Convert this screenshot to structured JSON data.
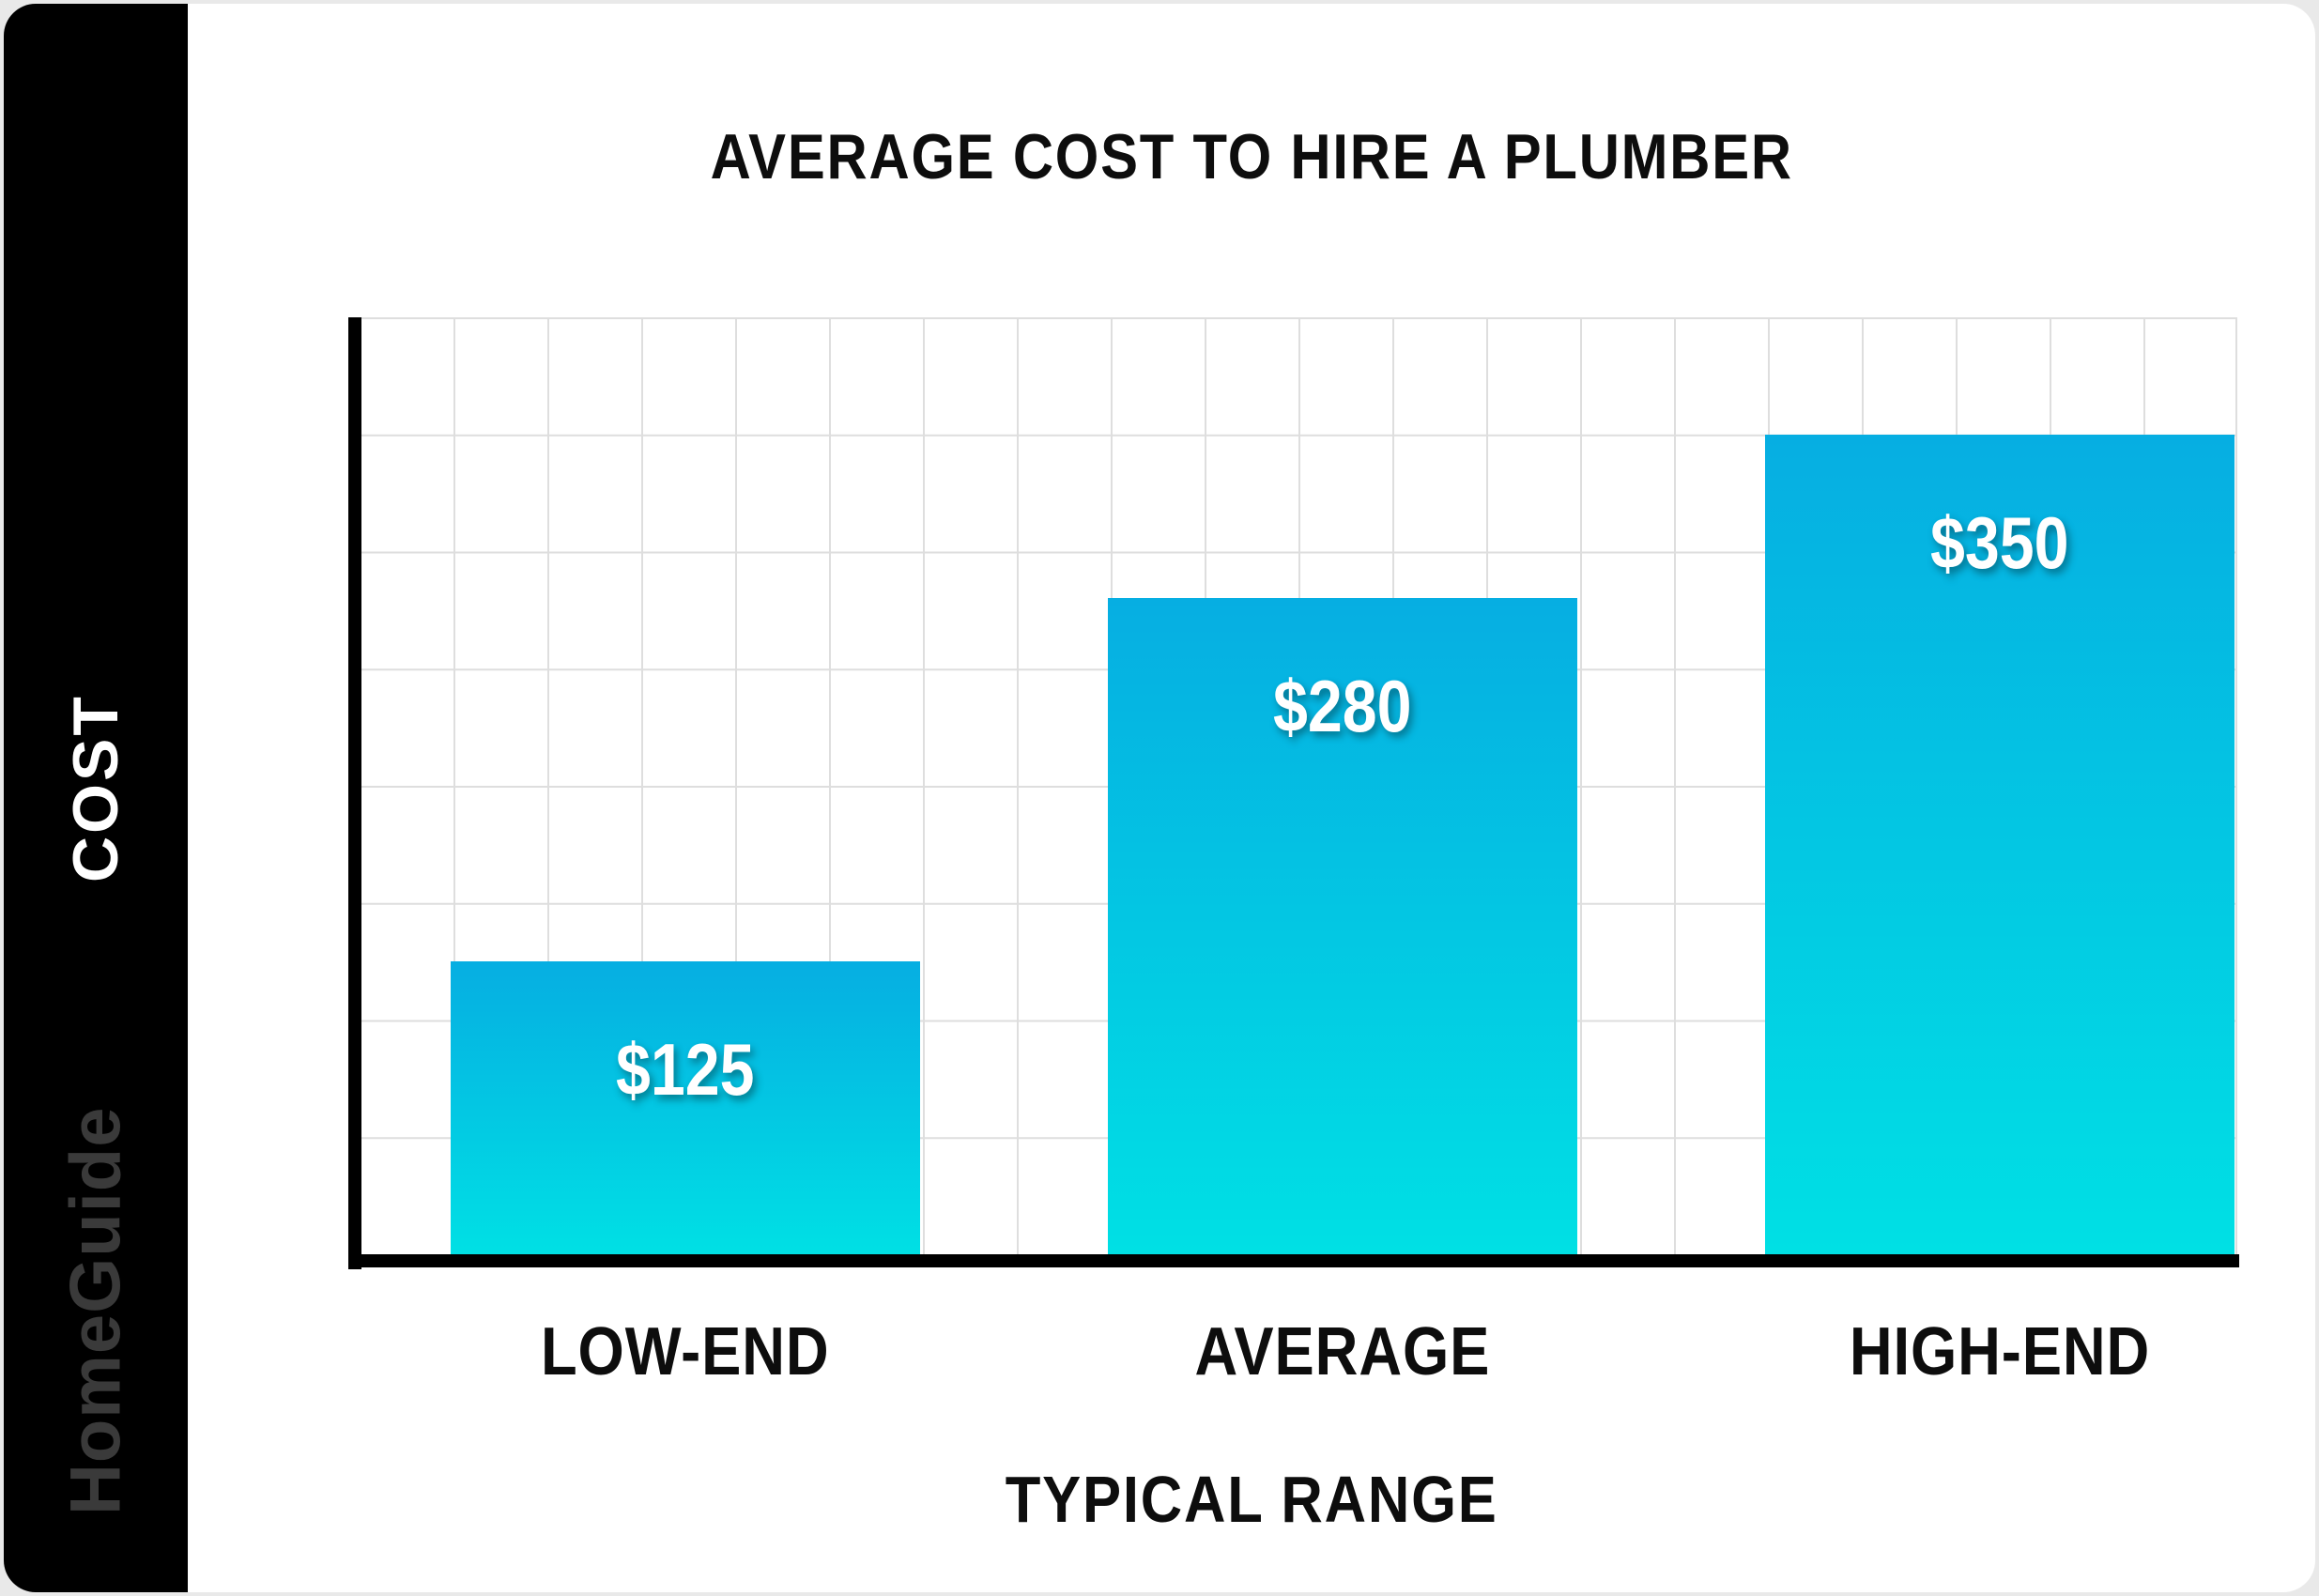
{
  "brand": {
    "name": "HomeGuide",
    "color": "#3a3a3a"
  },
  "sidebar": {
    "bg": "#000000",
    "label_color": "#ffffff"
  },
  "footer": {
    "bg": "#e9e9e9"
  },
  "chart_data": {
    "type": "bar",
    "title": "AVERAGE COST TO HIRE A PLUMBER",
    "categories": [
      "LOW-END",
      "AVERAGE",
      "HIGH-END"
    ],
    "values": [
      125,
      280,
      350
    ],
    "value_labels": [
      "$125",
      "$280",
      "$350"
    ],
    "xlabel": "TYPICAL RANGE",
    "ylabel": "COST",
    "ylim": [
      0,
      400
    ],
    "grid": {
      "on": true,
      "y_step_value": 50,
      "color": "#dedede"
    },
    "legend": false,
    "axis_color": "#000000",
    "bar_gradient": {
      "top": "#06aee2",
      "bottom": "#00e0e4"
    },
    "value_label_color": "#ffffff"
  }
}
